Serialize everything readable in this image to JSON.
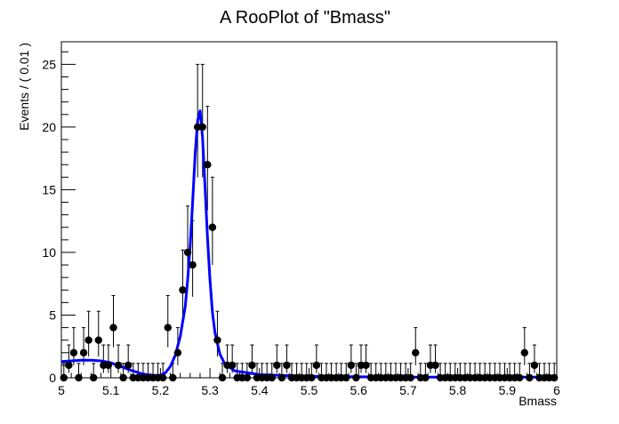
{
  "chart_data": {
    "type": "scatter",
    "title": "A RooPlot of \"Bmass\"",
    "xlabel": "Bmass",
    "ylabel": "Events / ( 0.01 )",
    "xlim": [
      5,
      6
    ],
    "ylim": [
      0,
      26.8
    ],
    "grid": false,
    "legend": "none",
    "x_ticks": [
      5,
      5.1,
      5.2,
      5.3,
      5.4,
      5.5,
      5.6,
      5.7,
      5.8,
      5.9,
      6
    ],
    "x_tick_labels": [
      "5",
      "5.1",
      "5.2",
      "5.3",
      "5.4",
      "5.5",
      "5.6",
      "5.7",
      "5.8",
      "5.9",
      "6"
    ],
    "y_ticks": [
      0,
      5,
      10,
      15,
      20,
      25
    ],
    "y_tick_labels": [
      "0",
      "5",
      "10",
      "15",
      "20",
      "25"
    ],
    "bin_width": 0.01,
    "points": {
      "x": [
        5.005,
        5.015,
        5.025,
        5.035,
        5.045,
        5.055,
        5.065,
        5.075,
        5.085,
        5.095,
        5.105,
        5.115,
        5.125,
        5.135,
        5.145,
        5.155,
        5.165,
        5.175,
        5.185,
        5.195,
        5.205,
        5.215,
        5.225,
        5.235,
        5.245,
        5.255,
        5.265,
        5.275,
        5.285,
        5.295,
        5.305,
        5.315,
        5.325,
        5.335,
        5.345,
        5.355,
        5.365,
        5.375,
        5.385,
        5.395,
        5.405,
        5.415,
        5.425,
        5.435,
        5.445,
        5.455,
        5.465,
        5.475,
        5.485,
        5.495,
        5.505,
        5.515,
        5.525,
        5.535,
        5.545,
        5.555,
        5.565,
        5.575,
        5.585,
        5.595,
        5.605,
        5.615,
        5.625,
        5.635,
        5.645,
        5.655,
        5.665,
        5.675,
        5.685,
        5.695,
        5.705,
        5.715,
        5.725,
        5.735,
        5.745,
        5.755,
        5.765,
        5.775,
        5.785,
        5.795,
        5.805,
        5.815,
        5.825,
        5.835,
        5.845,
        5.855,
        5.865,
        5.875,
        5.885,
        5.895,
        5.905,
        5.915,
        5.925,
        5.935,
        5.945,
        5.955,
        5.965,
        5.975,
        5.985,
        5.995
      ],
      "y": [
        0,
        1,
        2,
        0,
        2,
        3,
        0,
        3,
        1,
        1,
        4,
        1,
        0,
        1,
        0,
        0,
        0,
        0,
        0,
        0,
        0,
        4,
        0,
        2,
        7,
        10,
        9,
        20,
        20,
        17,
        12,
        3,
        0,
        1,
        1,
        0,
        0,
        0,
        1,
        0,
        0,
        0,
        0,
        1,
        0,
        1,
        0,
        0,
        0,
        0,
        0,
        1,
        0,
        0,
        0,
        0,
        0,
        0,
        1,
        0,
        1,
        1,
        0,
        0,
        0,
        0,
        0,
        0,
        0,
        0,
        0,
        2,
        0,
        0,
        1,
        1,
        0,
        0,
        0,
        0,
        0,
        0,
        0,
        0,
        0,
        0,
        0,
        0,
        0,
        0,
        0,
        0,
        0,
        2,
        0,
        1,
        0,
        0,
        0,
        0
      ]
    },
    "series": [
      {
        "type": "line",
        "color": "#0000ff",
        "x": [
          5.0,
          5.02,
          5.04,
          5.06,
          5.08,
          5.1,
          5.12,
          5.14,
          5.16,
          5.18,
          5.2,
          5.21,
          5.22,
          5.23,
          5.24,
          5.25,
          5.255,
          5.26,
          5.265,
          5.27,
          5.275,
          5.28,
          5.285,
          5.29,
          5.295,
          5.3,
          5.305,
          5.31,
          5.32,
          5.33,
          5.35,
          5.4,
          5.5,
          5.6,
          5.7,
          5.8,
          5.9,
          6.0
        ],
        "y": [
          1.3,
          1.35,
          1.4,
          1.4,
          1.35,
          1.2,
          0.9,
          0.6,
          0.35,
          0.2,
          0.2,
          0.4,
          0.9,
          1.8,
          3.3,
          5.7,
          7.8,
          10.5,
          14,
          17.8,
          20.5,
          21.3,
          19.2,
          15.3,
          11.2,
          7.8,
          5.2,
          3.6,
          1.9,
          1.1,
          0.55,
          0.25,
          0.12,
          0.08,
          0.06,
          0.05,
          0.05,
          0.05
        ]
      }
    ],
    "marker_color": "#000000"
  }
}
